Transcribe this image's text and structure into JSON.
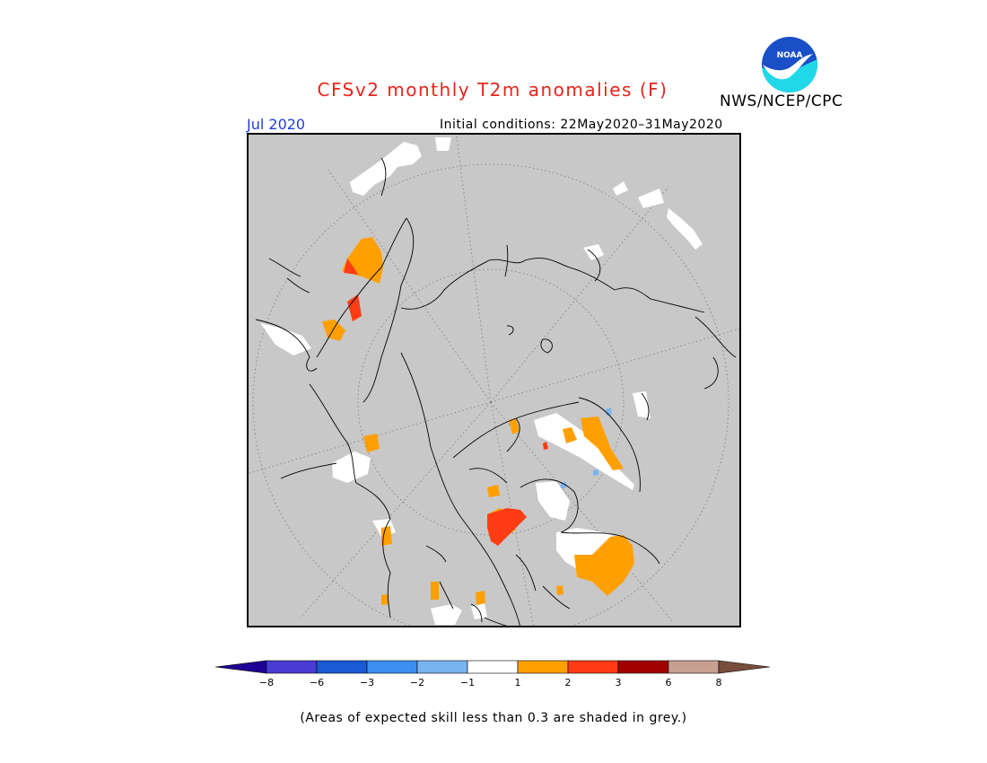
{
  "title": "CFSv2 monthly T2m anomalies (F)",
  "month": "Jul 2020",
  "initial_conditions": "Initial conditions: 22May2020–31May2020",
  "agency": "NWS/NCEP/CPC",
  "logo_text": "NOAA",
  "skill_note": "(Areas of expected skill less than 0.3 are shaded in grey.)",
  "colors": {
    "grey_skill": "#c8c8c8",
    "near_normal": "#ffffff",
    "anom_1_2": "#ffa000",
    "anom_2_3": "#ff3c14",
    "title": "#e8241c",
    "month": "#1f3fd8"
  },
  "colorbar": {
    "bins": [
      {
        "color": "#1e0096"
      },
      {
        "color": "#4a3cd2"
      },
      {
        "color": "#1a5ad2"
      },
      {
        "color": "#3c8ef0"
      },
      {
        "color": "#78b4f0"
      },
      {
        "color": "#ffffff"
      },
      {
        "color": "#ffa000"
      },
      {
        "color": "#ff3c14"
      },
      {
        "color": "#a00000"
      },
      {
        "color": "#c8a092"
      },
      {
        "color": "#784e3c"
      }
    ],
    "ticks": [
      "−8",
      "−6",
      "−3",
      "−2",
      "−1",
      "1",
      "2",
      "3",
      "6",
      "8"
    ]
  }
}
